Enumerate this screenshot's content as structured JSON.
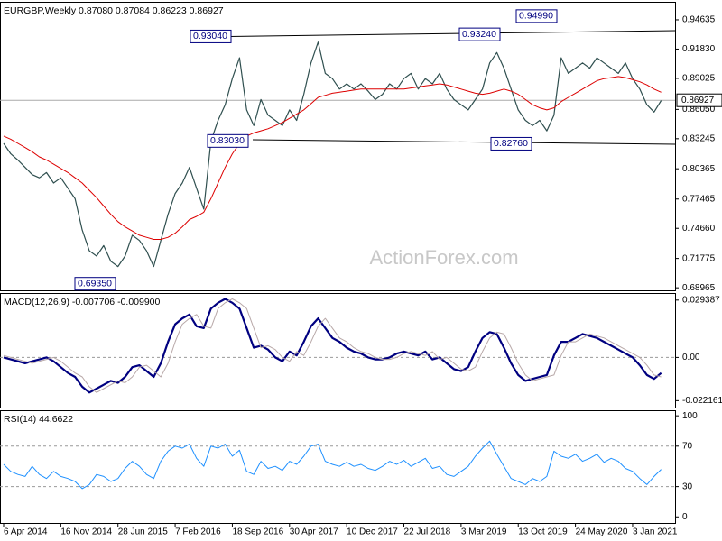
{
  "chart_data": [
    {
      "type": "line",
      "title": "EURGBP,Weekly  0.87080 0.87084 0.86223 0.86927",
      "watermark": "ActionForex.com",
      "ylim": [
        0.6872,
        0.9636
      ],
      "yticks": [
        0.94635,
        {
          "value": 0.9183,
          "label": "0.91830"
        },
        0.89025,
        {
          "value": 0.8605,
          "label": "0.86050"
        },
        0.83245,
        0.80365,
        0.77465,
        {
          "value": 0.7466,
          "label": "0.74660"
        },
        0.71775,
        0.68965
      ],
      "last_price": 0.86927,
      "annotations": [
        {
          "value": 0.9304,
          "label": "0.93040"
        },
        {
          "value": 0.8303,
          "label": "0.83030"
        },
        {
          "value": 0.6935,
          "label": "0.69350"
        },
        {
          "value": 0.9324,
          "label": "0.93240"
        },
        {
          "value": 0.9499,
          "label": "0.94990"
        },
        {
          "value": 0.8276,
          "label": "0.82760"
        }
      ],
      "series": [
        {
          "color": "#2f4f4f",
          "values": [
            0.828,
            0.818,
            0.812,
            0.805,
            0.798,
            0.795,
            0.8,
            0.79,
            0.795,
            0.785,
            0.775,
            0.745,
            0.725,
            0.72,
            0.73,
            0.715,
            0.71,
            0.72,
            0.74,
            0.735,
            0.725,
            0.71,
            0.735,
            0.76,
            0.78,
            0.79,
            0.805,
            0.785,
            0.765,
            0.83,
            0.85,
            0.865,
            0.89,
            0.91,
            0.86,
            0.845,
            0.87,
            0.855,
            0.85,
            0.845,
            0.86,
            0.85,
            0.875,
            0.905,
            0.925,
            0.895,
            0.89,
            0.88,
            0.885,
            0.88,
            0.885,
            0.878,
            0.87,
            0.875,
            0.885,
            0.88,
            0.89,
            0.895,
            0.88,
            0.89,
            0.885,
            0.895,
            0.88,
            0.87,
            0.865,
            0.86,
            0.87,
            0.88,
            0.905,
            0.915,
            0.9,
            0.88,
            0.86,
            0.85,
            0.845,
            0.85,
            0.84,
            0.855,
            0.91,
            0.895,
            0.9,
            0.905,
            0.9,
            0.91,
            0.905,
            0.9,
            0.895,
            0.905,
            0.89,
            0.88,
            0.865,
            0.858,
            0.869
          ]
        },
        {
          "color": "#dd0000",
          "values": [
            0.835,
            0.832,
            0.828,
            0.824,
            0.82,
            0.815,
            0.812,
            0.808,
            0.804,
            0.8,
            0.795,
            0.79,
            0.783,
            0.776,
            0.768,
            0.76,
            0.753,
            0.748,
            0.744,
            0.74,
            0.738,
            0.736,
            0.736,
            0.738,
            0.742,
            0.748,
            0.755,
            0.758,
            0.762,
            0.775,
            0.79,
            0.805,
            0.818,
            0.828,
            0.835,
            0.838,
            0.84,
            0.842,
            0.845,
            0.848,
            0.852,
            0.856,
            0.86,
            0.866,
            0.872,
            0.874,
            0.876,
            0.877,
            0.878,
            0.879,
            0.88,
            0.88,
            0.88,
            0.88,
            0.88,
            0.88,
            0.88,
            0.881,
            0.882,
            0.883,
            0.884,
            0.885,
            0.884,
            0.882,
            0.88,
            0.878,
            0.876,
            0.875,
            0.876,
            0.878,
            0.88,
            0.878,
            0.875,
            0.87,
            0.865,
            0.862,
            0.86,
            0.862,
            0.868,
            0.872,
            0.876,
            0.88,
            0.884,
            0.888,
            0.89,
            0.891,
            0.892,
            0.891,
            0.889,
            0.887,
            0.884,
            0.88,
            0.877
          ]
        }
      ]
    },
    {
      "type": "line",
      "title": "MACD(12,26,9) -0.007706 -0.009900",
      "ylim": [
        -0.0257,
        0.033
      ],
      "yticks": [
        0.029387,
        {
          "value": 0,
          "label": "0.00"
        },
        -0.022161
      ],
      "dashed_levels": [
        0
      ],
      "series": [
        {
          "color": "#000080",
          "values": [
            0.0,
            -0.001,
            -0.002,
            -0.003,
            -0.002,
            -0.001,
            0.0,
            -0.002,
            -0.005,
            -0.008,
            -0.01,
            -0.015,
            -0.018,
            -0.016,
            -0.014,
            -0.012,
            -0.013,
            -0.01,
            -0.005,
            -0.004,
            -0.007,
            -0.01,
            -0.003,
            0.008,
            0.017,
            0.02,
            0.022,
            0.016,
            0.015,
            0.025,
            0.028,
            0.03,
            0.028,
            0.025,
            0.015,
            0.005,
            0.006,
            0.004,
            0.0,
            -0.002,
            0.003,
            0.001,
            0.008,
            0.016,
            0.02,
            0.015,
            0.01,
            0.008,
            0.005,
            0.003,
            0.002,
            0.0,
            -0.001,
            -0.001,
            0.0,
            0.002,
            0.003,
            0.002,
            0.001,
            0.003,
            -0.001,
            0.0,
            -0.003,
            -0.006,
            -0.007,
            -0.005,
            0.003,
            0.01,
            0.013,
            0.012,
            0.005,
            -0.003,
            -0.009,
            -0.012,
            -0.011,
            -0.01,
            -0.009,
            0.001,
            0.008,
            0.008,
            0.01,
            0.012,
            0.011,
            0.01,
            0.008,
            0.006,
            0.004,
            0.002,
            0.0,
            -0.004,
            -0.009,
            -0.011,
            -0.008
          ]
        },
        {
          "color": "#b8a8a8",
          "values": [
            0.001,
            0.0,
            -0.001,
            -0.002,
            -0.003,
            -0.002,
            -0.001,
            0.0,
            -0.002,
            -0.005,
            -0.008,
            -0.01,
            -0.015,
            -0.018,
            -0.016,
            -0.014,
            -0.012,
            -0.013,
            -0.01,
            -0.005,
            -0.004,
            -0.007,
            -0.01,
            -0.003,
            0.008,
            0.017,
            0.02,
            0.022,
            0.016,
            0.015,
            0.025,
            0.028,
            0.03,
            0.028,
            0.025,
            0.015,
            0.005,
            0.006,
            0.004,
            0.0,
            -0.002,
            0.003,
            0.001,
            0.008,
            0.016,
            0.02,
            0.015,
            0.01,
            0.008,
            0.005,
            0.003,
            0.002,
            0.0,
            -0.001,
            -0.001,
            0.0,
            0.002,
            0.003,
            0.002,
            0.001,
            0.003,
            -0.001,
            0.0,
            -0.003,
            -0.006,
            -0.007,
            -0.005,
            0.003,
            0.01,
            0.013,
            0.012,
            0.005,
            -0.003,
            -0.009,
            -0.012,
            -0.011,
            -0.01,
            -0.009,
            0.001,
            0.008,
            0.008,
            0.01,
            0.012,
            0.011,
            0.01,
            0.008,
            0.006,
            0.004,
            0.002,
            0.0,
            -0.004,
            -0.009,
            -0.01
          ]
        }
      ]
    },
    {
      "type": "line",
      "title": "RSI(14) 44.6622",
      "ylim": [
        -6,
        105.5
      ],
      "yticks": [
        100,
        70,
        30,
        0
      ],
      "dashed_levels": [
        70,
        30
      ],
      "categories": [
        "6 Apr 2014",
        null,
        null,
        null,
        null,
        null,
        null,
        null,
        "16 Nov 2014",
        null,
        null,
        null,
        null,
        null,
        null,
        null,
        "28 Jun 2015",
        null,
        null,
        null,
        null,
        null,
        null,
        null,
        "7 Feb 2016",
        null,
        null,
        null,
        null,
        null,
        null,
        null,
        "18 Sep 2016",
        null,
        null,
        null,
        null,
        null,
        null,
        null,
        "30 Apr 2017",
        null,
        null,
        null,
        null,
        null,
        null,
        null,
        "10 Dec 2017",
        null,
        null,
        null,
        null,
        null,
        null,
        null,
        "22 Jul 2018",
        null,
        null,
        null,
        null,
        null,
        null,
        null,
        "3 Mar 2019",
        null,
        null,
        null,
        null,
        null,
        null,
        null,
        "13 Oct 2019",
        null,
        null,
        null,
        null,
        null,
        null,
        null,
        "24 May 2020",
        null,
        null,
        null,
        null,
        null,
        null,
        null,
        "3 Jan 2021",
        null,
        null,
        null,
        null
      ],
      "series": [
        {
          "color": "#1e90ff",
          "values": [
            52,
            45,
            42,
            40,
            50,
            42,
            38,
            45,
            40,
            38,
            35,
            28,
            32,
            42,
            40,
            35,
            38,
            48,
            55,
            50,
            42,
            38,
            55,
            65,
            70,
            68,
            72,
            58,
            50,
            70,
            68,
            72,
            60,
            66,
            45,
            42,
            55,
            48,
            50,
            46,
            55,
            52,
            60,
            70,
            72,
            55,
            52,
            50,
            54,
            50,
            52,
            48,
            46,
            50,
            55,
            52,
            56,
            50,
            54,
            58,
            48,
            50,
            42,
            40,
            45,
            50,
            60,
            68,
            75,
            62,
            50,
            38,
            35,
            32,
            38,
            35,
            40,
            65,
            60,
            58,
            62,
            55,
            58,
            62,
            54,
            58,
            55,
            48,
            45,
            38,
            32,
            40,
            47
          ]
        }
      ]
    }
  ]
}
